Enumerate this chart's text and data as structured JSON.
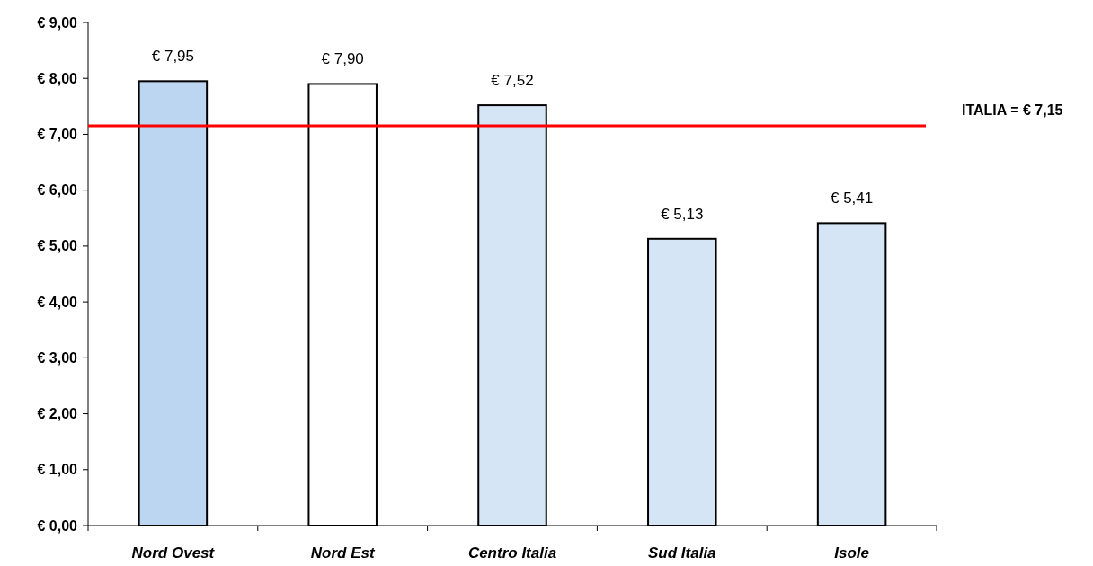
{
  "chart_data": {
    "type": "bar",
    "categories": [
      "Nord Ovest",
      "Nord Est",
      "Centro Italia",
      "Sud Italia",
      "Isole"
    ],
    "values": [
      7.95,
      7.9,
      7.52,
      5.13,
      5.41
    ],
    "colors": [
      "#bcd6f2",
      "#ffffff",
      "#d6e5f6",
      "#d6e5f6",
      "#d6e5f6"
    ],
    "value_labels": [
      "€ 7,95",
      "€ 7,90",
      "€ 7,52",
      "€ 5,13",
      "€ 5,41"
    ],
    "ylim": [
      0,
      9
    ],
    "yticks": [
      {
        "value": 0,
        "label": "€ 0,00"
      },
      {
        "value": 1,
        "label": "€ 1,00"
      },
      {
        "value": 2,
        "label": "€ 2,00"
      },
      {
        "value": 3,
        "label": "€ 3,00"
      },
      {
        "value": 4,
        "label": "€ 4,00"
      },
      {
        "value": 5,
        "label": "€ 5,00"
      },
      {
        "value": 6,
        "label": "€ 6,00"
      },
      {
        "value": 7,
        "label": "€ 7,00"
      },
      {
        "value": 8,
        "label": "€ 8,00"
      },
      {
        "value": 9,
        "label": "€ 9,00"
      }
    ],
    "ref_lines": [
      {
        "axis": "y",
        "value": 7.15,
        "label": "ITALIA = € 7,15",
        "color": "#ff0000"
      }
    ],
    "grid": false
  }
}
